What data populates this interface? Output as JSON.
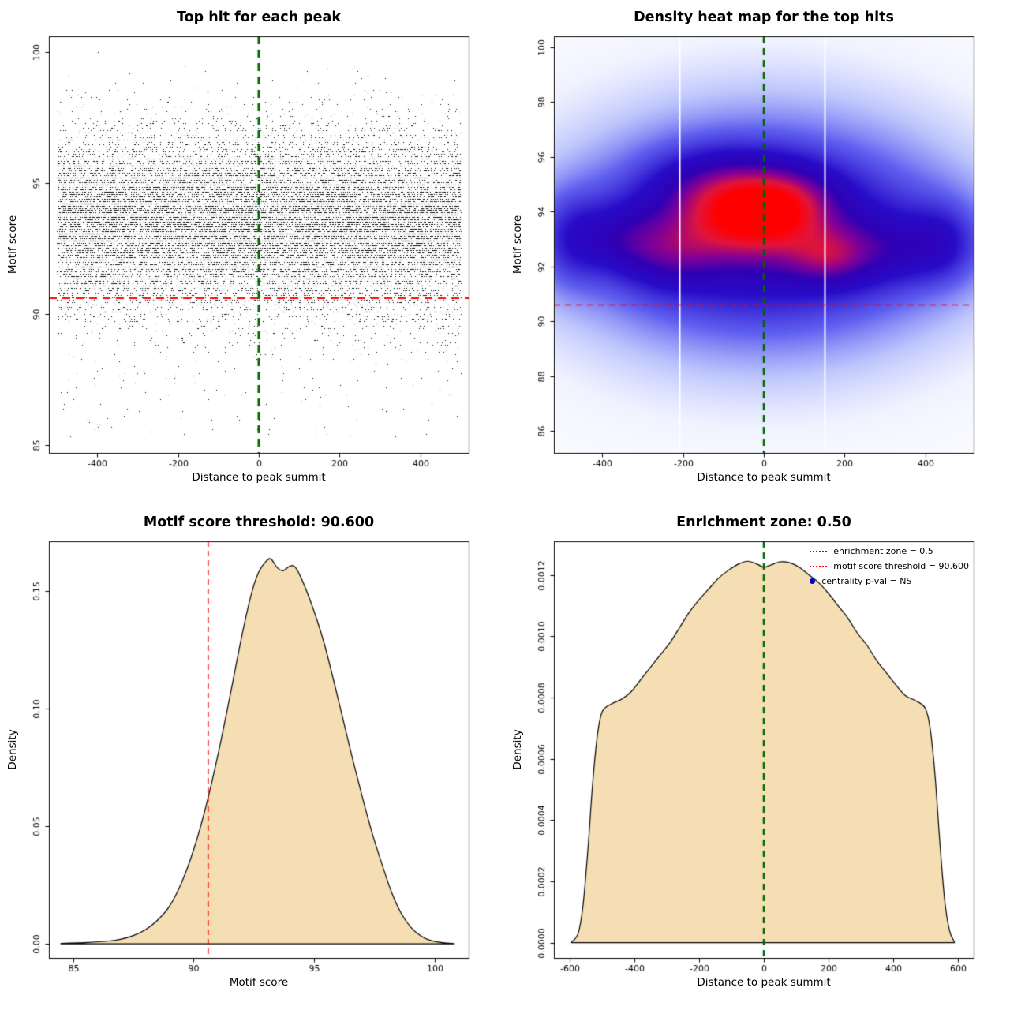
{
  "figure": {
    "background": "#ffffff",
    "colors": {
      "green_line": "#006400",
      "red_line": "#ff0000",
      "density_fill": "#f5deb3",
      "density_stroke": "#000000",
      "point_color": "#000000",
      "legend_dot_blue": "#0000cd"
    }
  },
  "chart_data": [
    {
      "type": "scatter",
      "title": "Top hit for each peak",
      "xlabel": "Distance to peak summit",
      "ylabel": "Motif score",
      "xlim": [
        -520,
        520
      ],
      "ylim": [
        84.7,
        100.6
      ],
      "xticks": [
        -400,
        -200,
        0,
        200,
        400
      ],
      "xtick_labels": [
        "-400",
        "-200",
        "0",
        "200",
        "400"
      ],
      "yticks": [
        85,
        90,
        95,
        100
      ],
      "ytick_labels": [
        "85",
        "90",
        "95",
        "100"
      ],
      "vline": {
        "x": 0,
        "color": "#006400",
        "width": 3,
        "dash": [
          10,
          7
        ]
      },
      "hline": {
        "y": 90.6,
        "color": "#ff0000",
        "width": 2,
        "dash": [
          10,
          7
        ]
      },
      "points_model": {
        "seed": 20240613,
        "n": 17000,
        "x_min": -500,
        "x_max": 500,
        "y_mean": 93.5,
        "y_sd": 1.75,
        "y_min": 85.1,
        "y_max": 100.4,
        "y_quantum": 0.09,
        "outlier_frac": 0.012,
        "outlier_min": 85.3,
        "outlier_max": 90.4
      }
    },
    {
      "type": "heatmap",
      "title": "Density heat map for the top hits",
      "xlabel": "Distance to peak summit",
      "ylabel": "Motif score",
      "xlim": [
        -520,
        520
      ],
      "ylim": [
        85.2,
        100.4
      ],
      "xticks": [
        -400,
        -200,
        0,
        200,
        400
      ],
      "xtick_labels": [
        "-400",
        "-200",
        "0",
        "200",
        "400"
      ],
      "yticks": [
        86,
        88,
        90,
        92,
        94,
        96,
        98,
        100
      ],
      "ytick_labels": [
        "86",
        "88",
        "90",
        "92",
        "94",
        "96",
        "98",
        "100"
      ],
      "vline": {
        "x": 0,
        "color": "#006400",
        "width": 2.5,
        "dash": [
          9,
          6
        ]
      },
      "hline": {
        "y": 90.6,
        "color": "#ff0000",
        "width": 1.5,
        "dash": [
          8,
          6
        ]
      },
      "gap_lines_x": [
        -210,
        150
      ],
      "density_components": [
        {
          "x": 0,
          "y": 93.3,
          "sx": 300,
          "sy": 2.8,
          "w": 0.55
        },
        {
          "x": 0,
          "y": 93.0,
          "sx": 380,
          "sy": 3.8,
          "w": 0.25
        },
        {
          "x": 0,
          "y": 93.0,
          "sx": 430,
          "sy": 1.8,
          "w": 0.3
        },
        {
          "x": 0,
          "y": 93.3,
          "sx": 500,
          "sy": 4.5,
          "w": 0.12
        },
        {
          "x": -110,
          "y": 94.9,
          "sx": 120,
          "sy": 1.0,
          "w": 0.5
        },
        {
          "x": 60,
          "y": 94.5,
          "sx": 90,
          "sy": 0.9,
          "w": 0.42
        },
        {
          "x": -40,
          "y": 93.5,
          "sx": 110,
          "sy": 0.9,
          "w": 0.4
        },
        {
          "x": -360,
          "y": 93.0,
          "sx": 80,
          "sy": 0.9,
          "w": 0.34
        },
        {
          "x": 160,
          "y": 92.3,
          "sx": 70,
          "sy": 0.7,
          "w": 0.34
        },
        {
          "x": 320,
          "y": 92.6,
          "sx": 110,
          "sy": 0.9,
          "w": 0.3
        },
        {
          "x": 445,
          "y": 92.9,
          "sx": 60,
          "sy": 1.0,
          "w": 0.3
        },
        {
          "x": -230,
          "y": 92.4,
          "sx": 80,
          "sy": 0.9,
          "w": 0.3
        },
        {
          "x": -480,
          "y": 93.0,
          "sx": 55,
          "sy": 1.2,
          "w": 0.3
        }
      ],
      "colormap": [
        {
          "t": 0.0,
          "c": [
            255,
            255,
            255
          ]
        },
        {
          "t": 0.07,
          "c": [
            240,
            242,
            255
          ]
        },
        {
          "t": 0.16,
          "c": [
            190,
            198,
            252
          ]
        },
        {
          "t": 0.3,
          "c": [
            96,
            96,
            240
          ]
        },
        {
          "t": 0.48,
          "c": [
            40,
            12,
            200
          ]
        },
        {
          "t": 0.62,
          "c": [
            48,
            0,
            180
          ]
        },
        {
          "t": 0.72,
          "c": [
            130,
            0,
            150
          ]
        },
        {
          "t": 0.82,
          "c": [
            225,
            20,
            60
          ]
        },
        {
          "t": 0.9,
          "c": [
            255,
            0,
            0
          ]
        },
        {
          "t": 1.0,
          "c": [
            255,
            0,
            0
          ]
        }
      ]
    },
    {
      "type": "area",
      "title": "Motif score threshold: 90.600",
      "xlabel": "Motif score",
      "ylabel": "Density",
      "xlim": [
        84,
        101.4
      ],
      "ylim": [
        -0.006,
        0.171
      ],
      "xticks": [
        85,
        90,
        95,
        100
      ],
      "xtick_labels": [
        "85",
        "90",
        "95",
        "100"
      ],
      "yticks": [
        0,
        0.05,
        0.1,
        0.15
      ],
      "ytick_labels": [
        "0.00",
        "0.05",
        "0.10",
        "0.15"
      ],
      "vline": {
        "x": 90.6,
        "color": "#ff0000",
        "width": 1.6,
        "dash": [
          7,
          5
        ]
      },
      "fill": "#f5deb3",
      "x": [
        84.5,
        85.5,
        86.5,
        87.0,
        87.5,
        88.0,
        88.5,
        89.0,
        89.5,
        90.0,
        90.5,
        91.0,
        91.5,
        92.0,
        92.4,
        92.7,
        93.0,
        93.2,
        93.45,
        93.7,
        94.0,
        94.25,
        94.6,
        95.0,
        95.4,
        95.8,
        96.2,
        96.6,
        97.0,
        97.4,
        97.8,
        98.2,
        98.6,
        99.0,
        99.4,
        99.8,
        100.3,
        100.8
      ],
      "y": [
        0.0002,
        0.0005,
        0.0012,
        0.002,
        0.0035,
        0.006,
        0.01,
        0.016,
        0.026,
        0.04,
        0.058,
        0.08,
        0.105,
        0.131,
        0.149,
        0.158,
        0.1625,
        0.1635,
        0.16,
        0.1585,
        0.1605,
        0.1595,
        0.152,
        0.141,
        0.128,
        0.112,
        0.095,
        0.078,
        0.062,
        0.047,
        0.034,
        0.022,
        0.013,
        0.007,
        0.0035,
        0.0015,
        0.0005,
        0.0001
      ]
    },
    {
      "type": "area",
      "title": "Enrichment zone: 0.50",
      "xlabel": "Distance to peak summit",
      "ylabel": "Density",
      "xlim": [
        -650,
        650
      ],
      "ylim": [
        -5e-05,
        0.00131
      ],
      "xticks": [
        -600,
        -400,
        -200,
        0,
        200,
        400,
        600
      ],
      "xtick_labels": [
        "-600",
        "-400",
        "-200",
        "0",
        "200",
        "400",
        "600"
      ],
      "yticks": [
        0,
        0.0002,
        0.0004,
        0.0006,
        0.0008,
        0.001,
        0.0012
      ],
      "ytick_labels": [
        "0.0000",
        "0.0002",
        "0.0004",
        "0.0006",
        "0.0008",
        "0.0010",
        "0.0012"
      ],
      "vline": {
        "x": 0,
        "color": "#006400",
        "width": 2.5,
        "dash": [
          8,
          6
        ]
      },
      "fill": "#f5deb3",
      "x": [
        -595,
        -575,
        -560,
        -545,
        -530,
        -515,
        -500,
        -470,
        -440,
        -410,
        -380,
        -350,
        -320,
        -290,
        -260,
        -230,
        -200,
        -170,
        -140,
        -110,
        -80,
        -50,
        -20,
        0,
        20,
        50,
        80,
        110,
        140,
        170,
        200,
        230,
        260,
        290,
        320,
        350,
        380,
        410,
        440,
        470,
        500,
        515,
        530,
        545,
        560,
        575,
        590
      ],
      "y": [
        2e-06,
        3e-05,
        0.00012,
        0.0003,
        0.00052,
        0.00068,
        0.000755,
        0.00078,
        0.000795,
        0.00082,
        0.00086,
        0.0009,
        0.00094,
        0.00098,
        0.00103,
        0.00108,
        0.00112,
        0.001155,
        0.00119,
        0.001215,
        0.001235,
        0.001245,
        0.001235,
        0.001225,
        0.001232,
        0.001243,
        0.00124,
        0.001225,
        0.0012,
        0.001175,
        0.00114,
        0.0011,
        0.00106,
        0.00101,
        0.00097,
        0.00092,
        0.00088,
        0.00084,
        0.000805,
        0.00079,
        0.000765,
        0.0007,
        0.00055,
        0.00033,
        0.00014,
        4e-05,
        3e-06
      ],
      "legend": [
        {
          "label": "enrichment zone = 0.5",
          "marker": "dotted-line",
          "color": "#006400"
        },
        {
          "label": "motif score threshold = 90.600",
          "marker": "dotted-line",
          "color": "#ff0000"
        },
        {
          "label": "centrality p-val = NS",
          "marker": "dot",
          "color": "#0000cd"
        }
      ]
    }
  ]
}
